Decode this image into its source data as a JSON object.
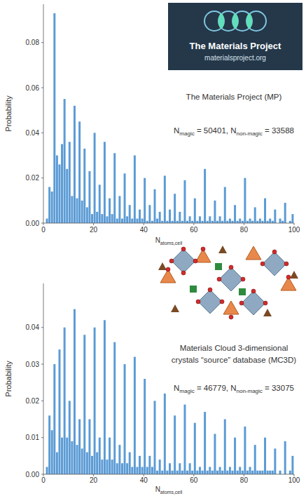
{
  "chart_data": [
    {
      "type": "histogram",
      "bins": [
        0,
        1,
        2,
        3,
        4,
        5,
        6,
        7,
        8,
        9,
        10,
        11,
        12,
        13,
        14,
        15,
        16,
        17,
        18,
        19,
        20,
        21,
        22,
        23,
        24,
        25,
        26,
        27,
        28,
        29,
        30,
        31,
        32,
        33,
        34,
        35,
        36,
        37,
        38,
        39,
        40,
        41,
        42,
        43,
        44,
        45,
        46,
        47,
        48,
        49,
        50,
        51,
        52,
        53,
        54,
        55,
        56,
        57,
        58,
        59,
        60,
        61,
        62,
        63,
        64,
        65,
        66,
        67,
        68,
        69,
        70,
        71,
        72,
        73,
        74,
        75,
        76,
        77,
        78,
        79,
        80,
        81,
        82,
        83,
        84,
        85,
        86,
        87,
        88,
        89,
        90,
        91,
        92,
        93,
        94,
        95,
        96,
        97,
        98,
        99,
        100
      ],
      "values": [
        0,
        0.002,
        0.016,
        0.014,
        0.093,
        0.03,
        0.026,
        0.035,
        0.055,
        0.024,
        0.036,
        0.012,
        0.052,
        0.011,
        0.045,
        0.01,
        0.033,
        0.007,
        0.023,
        0.004,
        0.04,
        0.005,
        0.017,
        0.004,
        0.036,
        0.003,
        0.011,
        0.004,
        0.031,
        0.002,
        0.012,
        0.002,
        0.022,
        0.003,
        0.008,
        0.002,
        0.03,
        0.002,
        0.006,
        0.002,
        0.02,
        0.001,
        0.008,
        0.001,
        0.015,
        0.002,
        0.005,
        0.001,
        0.021,
        0.001,
        0.006,
        0.001,
        0.013,
        0.001,
        0.005,
        0.001,
        0.019,
        0.001,
        0.003,
        0.001,
        0.011,
        0.001,
        0.003,
        0.001,
        0.024,
        0.001,
        0.003,
        0.001,
        0.01,
        0.001,
        0.003,
        0.001,
        0.016,
        0.001,
        0.002,
        0.001,
        0.008,
        0.001,
        0.002,
        0.001,
        0.02,
        0.001,
        0.002,
        0.001,
        0.007,
        0.001,
        0.002,
        0.001,
        0.011,
        0.001,
        0.002,
        0.001,
        0.006,
        0,
        0.002,
        0.001,
        0.009,
        0,
        0.001,
        0.004
      ],
      "color": "#5b9bd5",
      "xlim": [
        0,
        100
      ],
      "xticks": [
        0,
        20,
        40,
        60,
        80,
        100
      ],
      "ylim": [
        0,
        0.097
      ],
      "yticks": [
        {
          "value": 0,
          "label": "0.00"
        },
        {
          "value": 0.02,
          "label": "0.02"
        },
        {
          "value": 0.04,
          "label": "0.04"
        },
        {
          "value": 0.06,
          "label": "0.06"
        },
        {
          "value": 0.08,
          "label": "0.08"
        }
      ],
      "grid": false,
      "y_label": "Probability",
      "x_label": [
        {
          "text": "N"
        },
        {
          "sub": "atoms,cell"
        }
      ],
      "logo": {
        "title": "The Materials Project",
        "subtitle": "materialsproject.org"
      },
      "annotations": [
        {
          "lines": [
            [
              {
                "text": "The Materials Project (MP)"
              }
            ]
          ]
        },
        {
          "lines": [
            [
              {
                "text": "N"
              },
              {
                "sub": "magic"
              },
              {
                "text": " = 50401, N"
              },
              {
                "sub": "non-magic"
              },
              {
                "text": " = 33588"
              }
            ]
          ]
        }
      ]
    },
    {
      "type": "histogram",
      "bins": [
        0,
        1,
        2,
        3,
        4,
        5,
        6,
        7,
        8,
        9,
        10,
        11,
        12,
        13,
        14,
        15,
        16,
        17,
        18,
        19,
        20,
        21,
        22,
        23,
        24,
        25,
        26,
        27,
        28,
        29,
        30,
        31,
        32,
        33,
        34,
        35,
        36,
        37,
        38,
        39,
        40,
        41,
        42,
        43,
        44,
        45,
        46,
        47,
        48,
        49,
        50,
        51,
        52,
        53,
        54,
        55,
        56,
        57,
        58,
        59,
        60,
        61,
        62,
        63,
        64,
        65,
        66,
        67,
        68,
        69,
        70,
        71,
        72,
        73,
        74,
        75,
        76,
        77,
        78,
        79,
        80,
        81,
        82,
        83,
        84,
        85,
        86,
        87,
        88,
        89,
        90,
        91,
        92,
        93,
        94,
        95,
        96,
        97,
        98,
        99,
        100
      ],
      "values": [
        0,
        0.002,
        0.016,
        0.012,
        0.03,
        0.006,
        0.034,
        0.01,
        0.04,
        0.01,
        0.02,
        0.009,
        0.045,
        0.008,
        0.015,
        0.007,
        0.038,
        0.006,
        0.015,
        0.005,
        0.04,
        0.006,
        0.01,
        0.004,
        0.042,
        0.004,
        0.01,
        0.004,
        0.036,
        0.003,
        0.008,
        0.003,
        0.03,
        0.003,
        0.006,
        0.002,
        0.032,
        0.002,
        0.005,
        0.002,
        0.026,
        0.002,
        0.005,
        0.002,
        0.02,
        0.001,
        0.004,
        0.001,
        0.022,
        0.001,
        0.003,
        0.001,
        0.016,
        0.001,
        0.003,
        0.001,
        0.019,
        0.001,
        0.003,
        0.001,
        0.014,
        0.001,
        0.002,
        0.001,
        0.017,
        0.001,
        0.002,
        0.001,
        0.011,
        0.001,
        0.002,
        0.001,
        0.015,
        0.001,
        0.002,
        0.001,
        0.01,
        0.001,
        0.002,
        0.001,
        0.013,
        0.001,
        0.002,
        0.001,
        0.008,
        0.001,
        0.001,
        0.001,
        0.01,
        0.001,
        0.001,
        0.001,
        0.007,
        0,
        0.001,
        0,
        0.009,
        0,
        0.001,
        0.005
      ],
      "color": "#5b9bd5",
      "xlim": [
        0,
        100
      ],
      "xticks": [
        0,
        20,
        40,
        60,
        80,
        100
      ],
      "ylim": [
        0,
        0.052
      ],
      "yticks": [
        {
          "value": 0,
          "label": "0.00"
        },
        {
          "value": 0.01,
          "label": "0.01"
        },
        {
          "value": 0.02,
          "label": "0.02"
        },
        {
          "value": 0.03,
          "label": "0.03"
        },
        {
          "value": 0.04,
          "label": "0.04"
        }
      ],
      "grid": false,
      "y_label": "Probability",
      "x_label": [
        {
          "text": "N"
        },
        {
          "sub": "atoms,cell"
        }
      ],
      "annotations": [
        {
          "lines": [
            [
              {
                "text": "Materials Cloud 3-dimensional"
              }
            ],
            [
              {
                "text": "crystals “source” database (MC3D)"
              }
            ]
          ]
        },
        {
          "lines": [
            [
              {
                "text": "N"
              },
              {
                "sub": "magic"
              },
              {
                "text": " = 46779, N"
              },
              {
                "sub": "non-magic"
              },
              {
                "text": " = 33075"
              }
            ]
          ]
        }
      ]
    }
  ]
}
